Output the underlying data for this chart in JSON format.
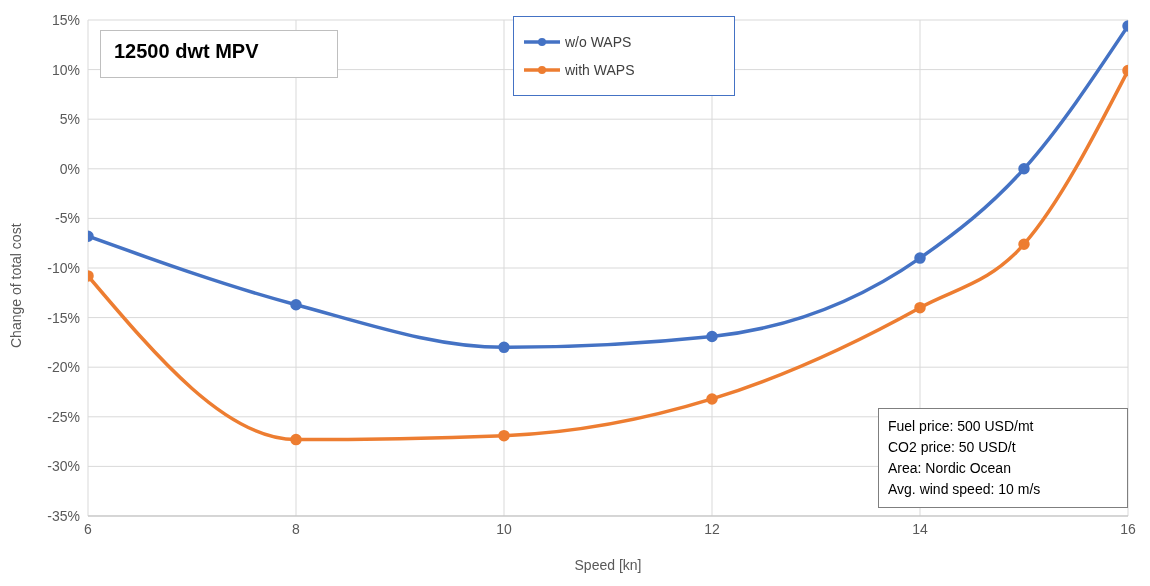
{
  "chart_data": {
    "type": "line",
    "title": "12500 dwt MPV",
    "xlabel": "Speed [kn]",
    "ylabel": "Change of total cost",
    "x": [
      6,
      8,
      10,
      12,
      14,
      15,
      16
    ],
    "series": [
      {
        "name": "w/o WAPS",
        "color": "#4472c4",
        "values": [
          -6.8,
          -13.7,
          -18.0,
          -16.9,
          -9.0,
          0,
          14.4
        ]
      },
      {
        "name": "with WAPS",
        "color": "#ed7d31",
        "values": [
          -10.8,
          -27.3,
          -26.9,
          -23.2,
          -14.0,
          -7.6,
          9.9
        ]
      }
    ],
    "xlim": [
      6,
      16
    ],
    "xticks": [
      6,
      8,
      10,
      12,
      14,
      16
    ],
    "ylim": [
      -35,
      15
    ],
    "yticks": [
      {
        "value": -35,
        "label": "-35%"
      },
      {
        "value": -30,
        "label": "-30%"
      },
      {
        "value": -25,
        "label": "-25%"
      },
      {
        "value": -20,
        "label": "-20%"
      },
      {
        "value": -15,
        "label": "-15%"
      },
      {
        "value": -10,
        "label": "-10%"
      },
      {
        "value": -5,
        "label": "-5%"
      },
      {
        "value": 0,
        "label": "0%"
      },
      {
        "value": 5,
        "label": "5%"
      },
      {
        "value": 10,
        "label": "10%"
      },
      {
        "value": 15,
        "label": "15%"
      }
    ],
    "grid": true,
    "legend": "top",
    "marker": "circle",
    "line_style": "solid",
    "annotations": [
      "Fuel price: 500 USD/mt",
      "CO2 price: 50 USD/t",
      "Area: Nordic Ocean",
      "Avg. wind speed: 10 m/s"
    ]
  }
}
